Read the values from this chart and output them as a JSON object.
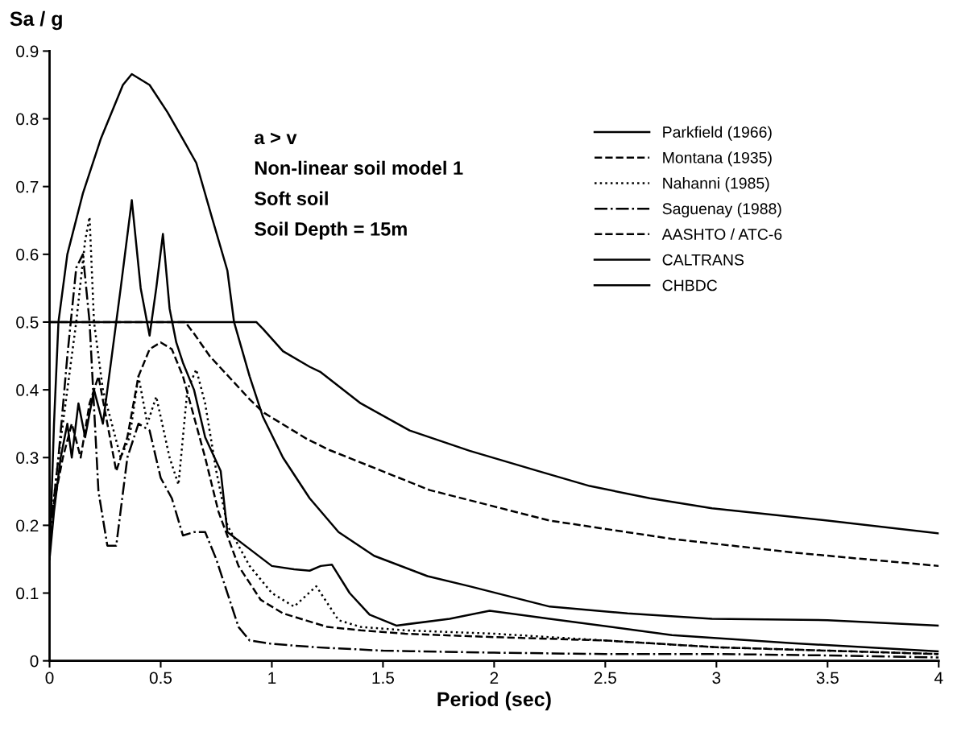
{
  "chart_data": {
    "type": "line",
    "xlabel": "Period (sec)",
    "ylabel": "Sa / g",
    "annotations": [
      "a > v",
      "Non-linear soil model 1",
      "Soft soil",
      "Soil Depth = 15m"
    ],
    "xlim": [
      0,
      4
    ],
    "xticks": [
      0,
      0.5,
      1,
      1.5,
      2,
      2.5,
      3,
      3.5,
      4
    ],
    "ylim": [
      0,
      0.9
    ],
    "yticks": [
      0,
      0.1,
      0.2,
      0.3,
      0.4,
      0.5,
      0.6,
      0.7,
      0.8,
      0.9
    ],
    "grid": false,
    "legend": "top right",
    "series": [
      {
        "name": "Parkfield (1966)",
        "color": "#000000",
        "line_style": "solid",
        "x": [
          0,
          0.02,
          0.05,
          0.08,
          0.1,
          0.13,
          0.16,
          0.2,
          0.24,
          0.28,
          0.32,
          0.37,
          0.41,
          0.45,
          0.48,
          0.51,
          0.54,
          0.57,
          0.6,
          0.65,
          0.7,
          0.77,
          0.8,
          0.88,
          1.0,
          1.1,
          1.17,
          1.22,
          1.27,
          1.35,
          1.44,
          1.56,
          1.8,
          1.98,
          2.25,
          2.8,
          3.34,
          4
        ],
        "values": [
          0.15,
          0.22,
          0.3,
          0.35,
          0.3,
          0.38,
          0.33,
          0.4,
          0.35,
          0.45,
          0.55,
          0.68,
          0.55,
          0.48,
          0.55,
          0.63,
          0.52,
          0.47,
          0.44,
          0.4,
          0.33,
          0.28,
          0.19,
          0.17,
          0.14,
          0.135,
          0.133,
          0.14,
          0.142,
          0.1,
          0.068,
          0.052,
          0.062,
          0.074,
          0.062,
          0.038,
          0.026,
          0.014
        ]
      },
      {
        "name": "Montana (1935)",
        "color": "#000000",
        "line_style": "dashed",
        "x": [
          0,
          0.03,
          0.06,
          0.1,
          0.14,
          0.18,
          0.22,
          0.26,
          0.3,
          0.35,
          0.4,
          0.45,
          0.5,
          0.55,
          0.6,
          0.65,
          0.7,
          0.76,
          0.85,
          0.95,
          1.05,
          1.15,
          1.25,
          1.4,
          1.6,
          2.0,
          2.5,
          3.0,
          3.5,
          4
        ],
        "values": [
          0.2,
          0.25,
          0.3,
          0.35,
          0.3,
          0.38,
          0.42,
          0.35,
          0.28,
          0.33,
          0.42,
          0.46,
          0.47,
          0.46,
          0.42,
          0.36,
          0.3,
          0.22,
          0.14,
          0.09,
          0.07,
          0.06,
          0.05,
          0.045,
          0.04,
          0.035,
          0.03,
          0.02,
          0.015,
          0.01
        ]
      },
      {
        "name": "Nahanni (1985)",
        "color": "#000000",
        "line_style": "dotted",
        "x": [
          0,
          0.04,
          0.08,
          0.12,
          0.16,
          0.18,
          0.2,
          0.24,
          0.28,
          0.32,
          0.36,
          0.4,
          0.44,
          0.48,
          0.5,
          0.54,
          0.58,
          0.62,
          0.66,
          0.7,
          0.75,
          0.8,
          0.9,
          1.0,
          1.1,
          1.2,
          1.3,
          1.4,
          1.6,
          2,
          2.5,
          3,
          3.5,
          4
        ],
        "values": [
          0.18,
          0.3,
          0.4,
          0.5,
          0.62,
          0.655,
          0.5,
          0.4,
          0.35,
          0.3,
          0.33,
          0.42,
          0.35,
          0.39,
          0.36,
          0.3,
          0.26,
          0.4,
          0.43,
          0.38,
          0.28,
          0.2,
          0.14,
          0.1,
          0.08,
          0.11,
          0.06,
          0.05,
          0.045,
          0.04,
          0.03,
          0.02,
          0.015,
          0.01
        ]
      },
      {
        "name": "Saguenay (1988)",
        "color": "#000000",
        "line_style": "dashdot",
        "x": [
          0,
          0.04,
          0.08,
          0.12,
          0.15,
          0.18,
          0.22,
          0.26,
          0.3,
          0.35,
          0.4,
          0.45,
          0.5,
          0.55,
          0.6,
          0.65,
          0.7,
          0.75,
          0.8,
          0.85,
          0.9,
          1.0,
          1.2,
          1.5,
          2,
          2.5,
          3,
          3.5,
          4
        ],
        "values": [
          0.18,
          0.3,
          0.45,
          0.58,
          0.6,
          0.5,
          0.25,
          0.17,
          0.17,
          0.3,
          0.35,
          0.34,
          0.27,
          0.24,
          0.185,
          0.19,
          0.19,
          0.15,
          0.1,
          0.05,
          0.03,
          0.025,
          0.02,
          0.015,
          0.012,
          0.01,
          0.01,
          0.008,
          0.005
        ]
      },
      {
        "name": "AASHTO / ATC-6",
        "color": "#000000",
        "line_style": "dashed",
        "x": [
          0,
          0.61,
          0.65,
          0.72,
          0.9,
          0.96,
          1.16,
          1.26,
          1.71,
          2.25,
          2.8,
          3.34,
          4
        ],
        "values": [
          0.5,
          0.5,
          0.483,
          0.45,
          0.386,
          0.367,
          0.327,
          0.311,
          0.252,
          0.207,
          0.18,
          0.16,
          0.14
        ]
      },
      {
        "name": "CALTRANS",
        "color": "#000000",
        "line_style": "solid",
        "x": [
          0,
          0.02,
          0.04,
          0.08,
          0.15,
          0.23,
          0.33,
          0.37,
          0.45,
          0.53,
          0.6,
          0.66,
          0.73,
          0.8,
          0.83,
          0.9,
          0.96,
          1.05,
          1.17,
          1.3,
          1.46,
          1.7,
          1.89,
          2.25,
          2.6,
          2.98,
          3.5,
          4
        ],
        "values": [
          0.15,
          0.35,
          0.5,
          0.6,
          0.69,
          0.77,
          0.85,
          0.866,
          0.85,
          0.81,
          0.77,
          0.735,
          0.655,
          0.576,
          0.5,
          0.42,
          0.36,
          0.3,
          0.24,
          0.19,
          0.155,
          0.125,
          0.11,
          0.08,
          0.07,
          0.062,
          0.06,
          0.052
        ]
      },
      {
        "name": "CHBDC",
        "color": "#000000",
        "line_style": "solid",
        "x": [
          0,
          0.93,
          0.96,
          1.05,
          1.17,
          1.22,
          1.4,
          1.62,
          1.89,
          2.2,
          2.43,
          2.7,
          2.98,
          3.5,
          4
        ],
        "values": [
          0.5,
          0.5,
          0.49,
          0.457,
          0.434,
          0.426,
          0.38,
          0.34,
          0.31,
          0.28,
          0.258,
          0.24,
          0.225,
          0.207,
          0.188
        ]
      }
    ]
  }
}
